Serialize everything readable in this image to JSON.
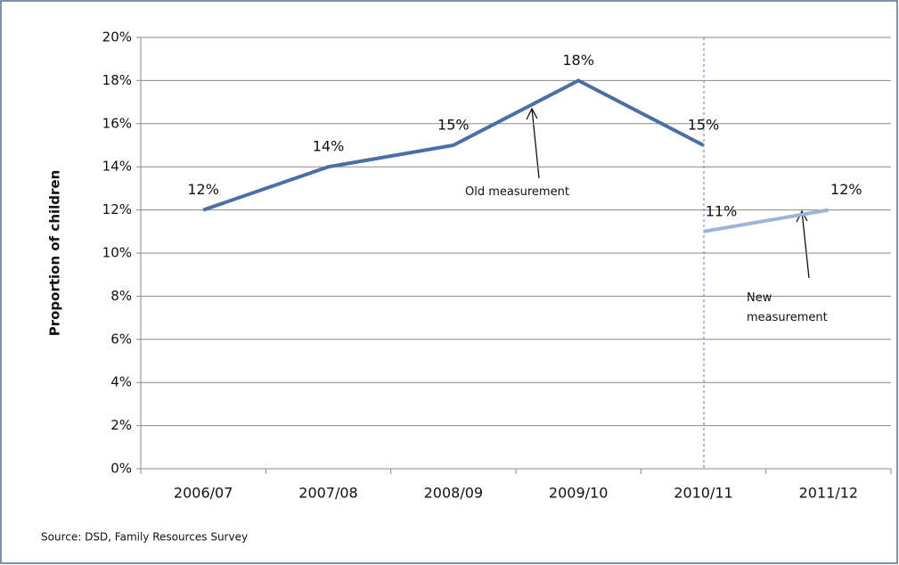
{
  "chart_data": {
    "type": "line",
    "y_label": "Proportion of children",
    "source": "Source: DSD, Family Resources Survey",
    "categories": [
      "2006/07",
      "2007/08",
      "2008/09",
      "2009/10",
      "2010/11",
      "2011/12"
    ],
    "series": [
      {
        "name": "Old measurement",
        "color": "#4a6fa5",
        "values": [
          12,
          14,
          15,
          18,
          15,
          null
        ],
        "value_labels": [
          "12%",
          "14%",
          "15%",
          "18%",
          "15%",
          null
        ]
      },
      {
        "name": "New measurement",
        "color": "#9db3d8",
        "values": [
          null,
          null,
          null,
          null,
          11,
          12
        ],
        "value_labels": [
          null,
          null,
          null,
          null,
          "11%",
          "12%"
        ]
      }
    ],
    "ylim": [
      0,
      20
    ],
    "yticks": [
      {
        "value": 0,
        "label": "0%"
      },
      {
        "value": 2,
        "label": "2%"
      },
      {
        "value": 4,
        "label": "4%"
      },
      {
        "value": 6,
        "label": "6%"
      },
      {
        "value": 8,
        "label": "8%"
      },
      {
        "value": 10,
        "label": "10%"
      },
      {
        "value": 12,
        "label": "12%"
      },
      {
        "value": 14,
        "label": "14%"
      },
      {
        "value": 16,
        "label": "16%"
      },
      {
        "value": 18,
        "label": "18%"
      },
      {
        "value": 20,
        "label": "20%"
      }
    ],
    "grid": true
  }
}
